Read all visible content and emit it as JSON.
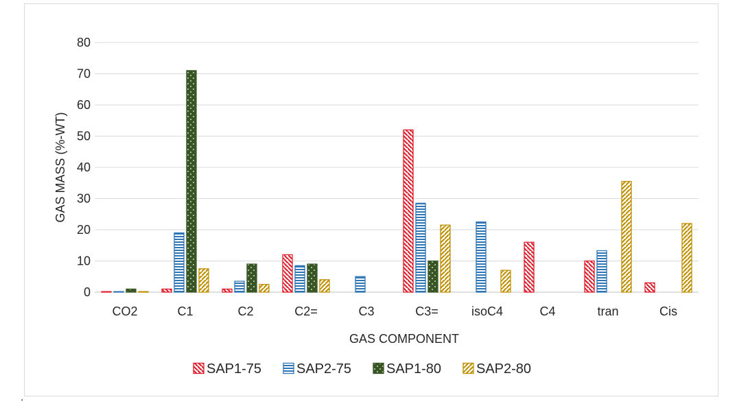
{
  "chart_data": {
    "type": "bar",
    "title": "",
    "xlabel": "GAS COMPONENT",
    "ylabel": "GAS MASS (%-WT)",
    "ylim": [
      0,
      80
    ],
    "yticks": [
      0,
      10,
      20,
      30,
      40,
      50,
      60,
      70,
      80
    ],
    "grid": true,
    "legend_position": "bottom",
    "categories": [
      "CO2",
      "C1",
      "C2",
      "C2=",
      "C3",
      "C3=",
      "isoC4",
      "C4",
      "tran",
      "Cis"
    ],
    "series": [
      {
        "name": "SAP1-75",
        "color": "#e0202e",
        "pattern": "diagonal-down",
        "values": [
          0.2,
          1,
          1,
          12,
          0,
          52,
          0,
          16,
          10,
          3
        ]
      },
      {
        "name": "SAP2-75",
        "color": "#2e75b6",
        "pattern": "horizontal",
        "values": [
          0.2,
          19,
          3.5,
          8.5,
          5,
          28.5,
          22.5,
          0,
          13.3,
          0
        ]
      },
      {
        "name": "SAP1-80",
        "color": "#375623",
        "pattern": "dots",
        "values": [
          1,
          71,
          9,
          9,
          0,
          10,
          0,
          0,
          0,
          0
        ]
      },
      {
        "name": "SAP2-80",
        "color": "#bf9000",
        "pattern": "diagonal-up",
        "values": [
          0.2,
          7.5,
          2.5,
          4,
          0,
          21.5,
          7,
          0,
          35.5,
          22
        ]
      }
    ]
  },
  "stray_mark": "."
}
